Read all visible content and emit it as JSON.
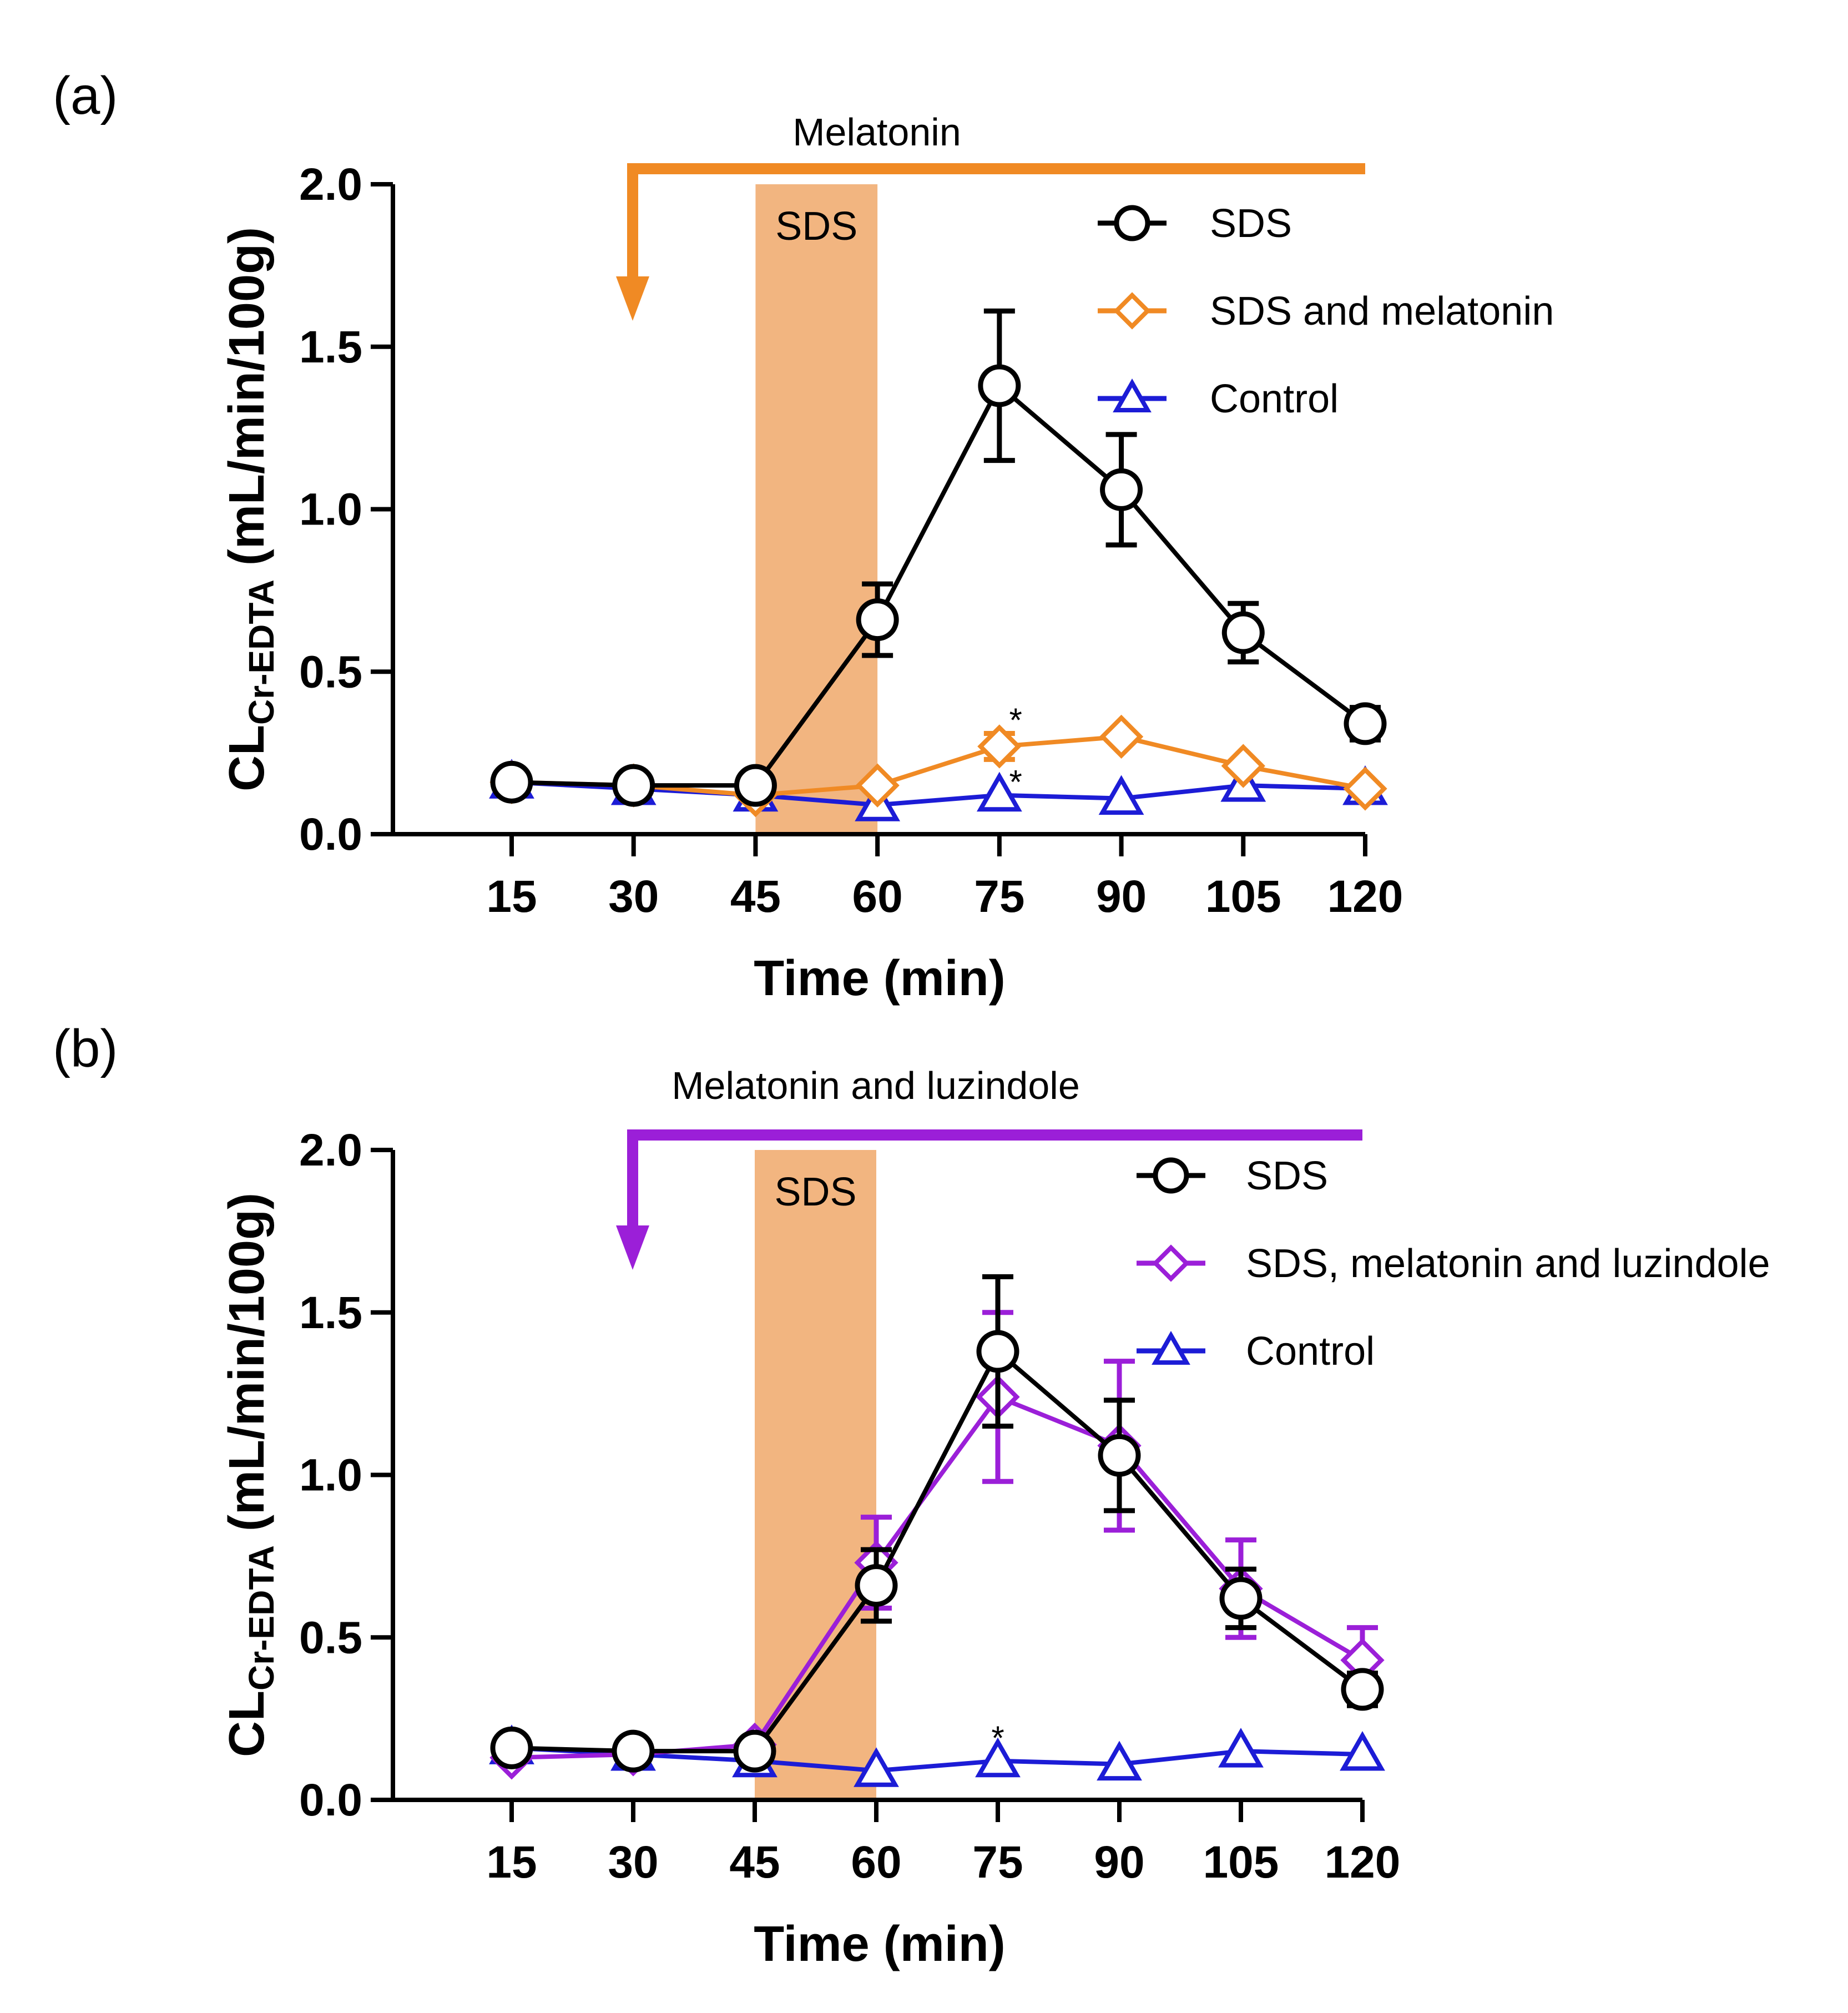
{
  "colors": {
    "sds": "#000000",
    "sds_melatonin": "#F08A24",
    "sds_mel_luz": "#9B1FD8",
    "control": "#1C1CD6",
    "sds_band": "#F2B580"
  },
  "chart_data": [
    {
      "type": "line",
      "panel_label": "(a)",
      "treatment_label": "Melatonin",
      "treatment_color": "#F08A24",
      "band_label": "SDS",
      "band_range": [
        45,
        60
      ],
      "xlabel": "Time (min)",
      "ylabel_main": "CL",
      "ylabel_sub": "Cr-EDTA",
      "ylabel_unit": " (mL/min/100g)",
      "x": [
        15,
        30,
        45,
        60,
        75,
        90,
        105,
        120
      ],
      "xticks": [
        "15",
        "30",
        "45",
        "60",
        "75",
        "90",
        "105",
        "120"
      ],
      "ylim": [
        0,
        2
      ],
      "yticks": [
        "0.0",
        "0.5",
        "1.0",
        "1.5",
        "2.0"
      ],
      "grid": false,
      "legend_position": "top-right",
      "series": [
        {
          "name": "SDS",
          "marker": "circle",
          "color": "#000000",
          "values": [
            0.16,
            0.15,
            0.15,
            0.66,
            1.38,
            1.06,
            0.62,
            0.34
          ],
          "errors": [
            0,
            0,
            0,
            0.11,
            0.23,
            0.17,
            0.09,
            0.05
          ]
        },
        {
          "name": "SDS and melatonin",
          "marker": "diamond",
          "color": "#F08A24",
          "values": [
            0.16,
            0.15,
            0.12,
            0.15,
            0.27,
            0.3,
            0.21,
            0.14
          ],
          "errors": [
            0,
            0,
            0,
            0,
            0.04,
            0,
            0,
            0
          ]
        },
        {
          "name": "Control",
          "marker": "triangle",
          "color": "#1C1CD6",
          "values": [
            0.16,
            0.14,
            0.12,
            0.09,
            0.12,
            0.11,
            0.15,
            0.14
          ],
          "errors": [
            0,
            0,
            0,
            0,
            0,
            0,
            0,
            0
          ]
        }
      ],
      "annotations": [
        {
          "text": "*",
          "x": 77,
          "y": 0.35
        },
        {
          "text": "*",
          "x": 77,
          "y": 0.16
        }
      ]
    },
    {
      "type": "line",
      "panel_label": "(b)",
      "treatment_label": "Melatonin and luzindole",
      "treatment_color": "#9B1FD8",
      "band_label": "SDS",
      "band_range": [
        45,
        60
      ],
      "xlabel": "Time (min)",
      "ylabel_main": "CL",
      "ylabel_sub": "Cr-EDTA",
      "ylabel_unit": " (mL/min/100g)",
      "x": [
        15,
        30,
        45,
        60,
        75,
        90,
        105,
        120
      ],
      "xticks": [
        "15",
        "30",
        "45",
        "60",
        "75",
        "90",
        "105",
        "120"
      ],
      "ylim": [
        0,
        2
      ],
      "yticks": [
        "0.0",
        "0.5",
        "1.0",
        "1.5",
        "2.0"
      ],
      "grid": false,
      "legend_position": "top-right",
      "series": [
        {
          "name": "SDS",
          "marker": "circle",
          "color": "#000000",
          "values": [
            0.16,
            0.15,
            0.15,
            0.66,
            1.38,
            1.06,
            0.62,
            0.34
          ],
          "errors": [
            0,
            0,
            0,
            0.11,
            0.23,
            0.17,
            0.09,
            0.05
          ]
        },
        {
          "name": "SDS, melatonin and luzindole",
          "marker": "diamond",
          "color": "#9B1FD8",
          "values": [
            0.13,
            0.14,
            0.17,
            0.73,
            1.24,
            1.09,
            0.65,
            0.43
          ],
          "errors": [
            0,
            0,
            0,
            0.14,
            0.26,
            0.26,
            0.15,
            0.1
          ]
        },
        {
          "name": "Control",
          "marker": "triangle",
          "color": "#1C1CD6",
          "values": [
            0.16,
            0.14,
            0.12,
            0.09,
            0.12,
            0.11,
            0.15,
            0.14
          ],
          "errors": [
            0,
            0,
            0,
            0,
            0,
            0,
            0,
            0
          ]
        }
      ],
      "annotations": [
        {
          "text": "*",
          "x": 75,
          "y": 0.19
        }
      ]
    }
  ]
}
